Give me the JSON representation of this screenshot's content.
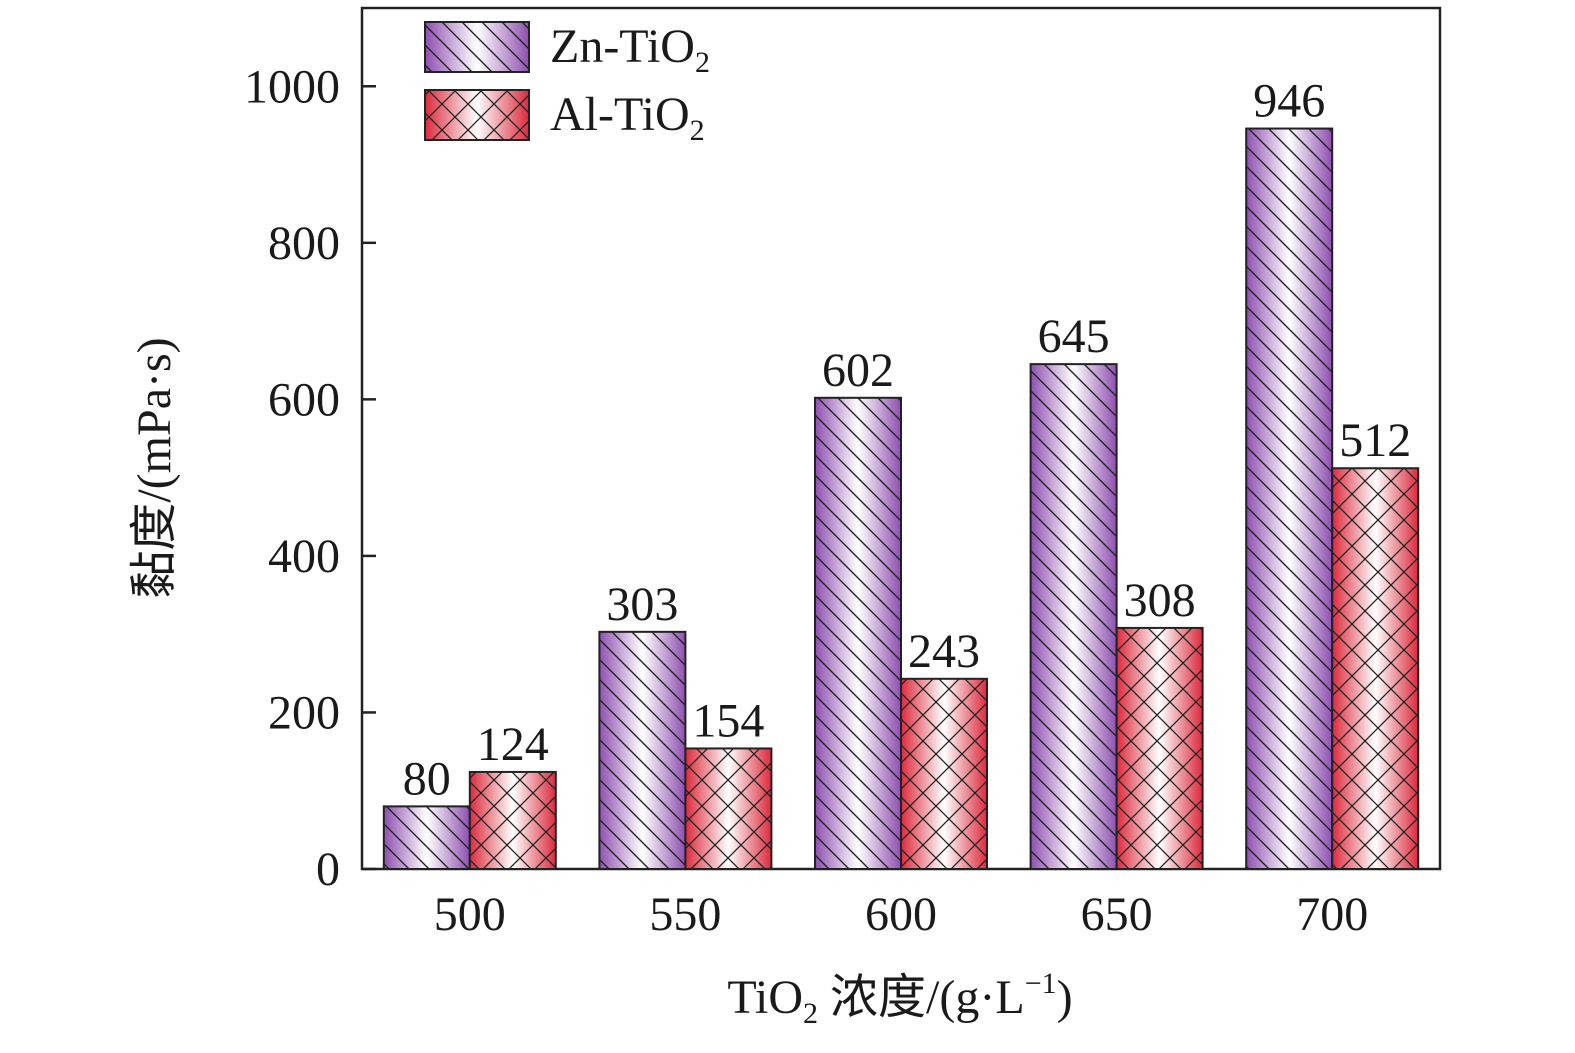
{
  "chart_data": {
    "type": "bar",
    "categories": [
      "500",
      "550",
      "600",
      "650",
      "700"
    ],
    "series": [
      {
        "name": "Zn-TiO2",
        "values": [
          80,
          303,
          602,
          645,
          946
        ],
        "color": "#8e4fb0",
        "pattern": "diagonal-hatch"
      },
      {
        "name": "Al-TiO2",
        "values": [
          124,
          154,
          243,
          308,
          512
        ],
        "color": "#dc2a3c",
        "pattern": "cross-hatch"
      }
    ],
    "xlabel": {
      "main": "TiO",
      "sub": "2",
      "rest": " 浓度/(g·L",
      "sup": "−1",
      "close": ")"
    },
    "ylabel": "黏度/(mPa·s)",
    "ylim": [
      0,
      1100
    ],
    "yticks": [
      0,
      200,
      400,
      600,
      800,
      1000
    ],
    "legend": {
      "position": "top-left",
      "entries": [
        {
          "main": "Zn-TiO",
          "sub": "2"
        },
        {
          "main": "Al-TiO",
          "sub": "2"
        }
      ]
    },
    "grid": false
  }
}
